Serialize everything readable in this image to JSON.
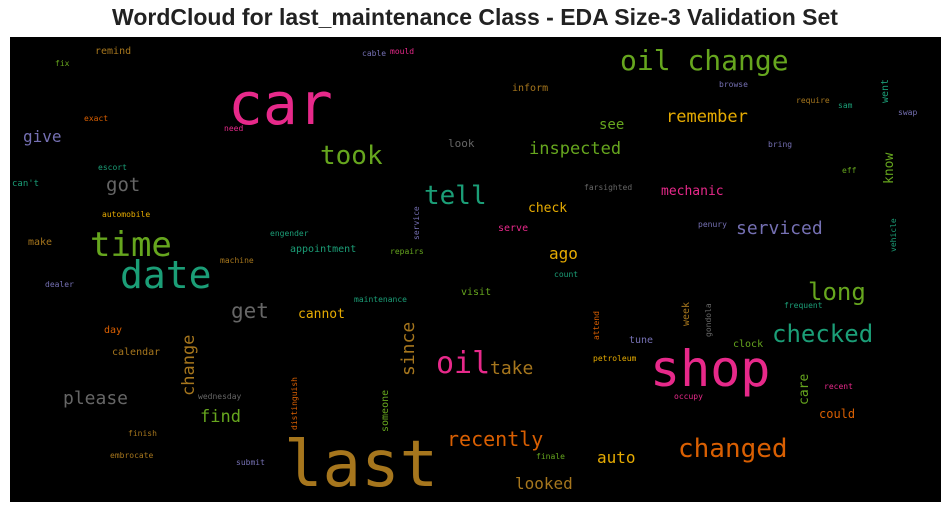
{
  "chart_data": {
    "type": "wordcloud",
    "title": "WordCloud for last_maintenance Class - EDA Size-3 Validation Set",
    "background": "#000000",
    "palette": "Dark2",
    "words": [
      {
        "text": "last",
        "weight": 1.0,
        "color": "#a6761d",
        "rotate": false
      },
      {
        "text": "car",
        "weight": 0.92,
        "color": "#e7298a",
        "rotate": false
      },
      {
        "text": "shop",
        "weight": 0.8,
        "color": "#e7298a",
        "rotate": false
      },
      {
        "text": "date",
        "weight": 0.62,
        "color": "#1b9e77",
        "rotate": false
      },
      {
        "text": "time",
        "weight": 0.56,
        "color": "#66a61e",
        "rotate": false
      },
      {
        "text": "oil change",
        "weight": 0.45,
        "color": "#66a61e",
        "rotate": false
      },
      {
        "text": "oil",
        "weight": 0.5,
        "color": "#e7298a",
        "rotate": false
      },
      {
        "text": "took",
        "weight": 0.44,
        "color": "#66a61e",
        "rotate": false
      },
      {
        "text": "tell",
        "weight": 0.44,
        "color": "#1b9e77",
        "rotate": false
      },
      {
        "text": "changed",
        "weight": 0.43,
        "color": "#d95f02",
        "rotate": false
      },
      {
        "text": "checked",
        "weight": 0.42,
        "color": "#1b9e77",
        "rotate": false
      },
      {
        "text": "long",
        "weight": 0.38,
        "color": "#66a61e",
        "rotate": false
      },
      {
        "text": "recently",
        "weight": 0.33,
        "color": "#d95f02",
        "rotate": false
      },
      {
        "text": "get",
        "weight": 0.33,
        "color": "#666666",
        "rotate": false
      },
      {
        "text": "got",
        "weight": 0.32,
        "color": "#666666",
        "rotate": false
      },
      {
        "text": "please",
        "weight": 0.3,
        "color": "#666666",
        "rotate": false
      },
      {
        "text": "take",
        "weight": 0.3,
        "color": "#a6761d",
        "rotate": false
      },
      {
        "text": "serviced",
        "weight": 0.29,
        "color": "#7570b3",
        "rotate": false
      },
      {
        "text": "remember",
        "weight": 0.28,
        "color": "#e6ab02",
        "rotate": false
      },
      {
        "text": "inspected",
        "weight": 0.28,
        "color": "#66a61e",
        "rotate": false
      },
      {
        "text": "change",
        "weight": 0.28,
        "color": "#a6761d",
        "rotate": true
      },
      {
        "text": "since",
        "weight": 0.28,
        "color": "#a6761d",
        "rotate": true
      },
      {
        "text": "find",
        "weight": 0.27,
        "color": "#66a61e",
        "rotate": false
      },
      {
        "text": "auto",
        "weight": 0.26,
        "color": "#e6ab02",
        "rotate": false
      },
      {
        "text": "looked",
        "weight": 0.26,
        "color": "#a6761d",
        "rotate": false
      },
      {
        "text": "ago",
        "weight": 0.26,
        "color": "#e6ab02",
        "rotate": false
      },
      {
        "text": "give",
        "weight": 0.25,
        "color": "#7570b3",
        "rotate": false
      },
      {
        "text": "see",
        "weight": 0.22,
        "color": "#66a61e",
        "rotate": false
      },
      {
        "text": "mechanic",
        "weight": 0.22,
        "color": "#e7298a",
        "rotate": false
      },
      {
        "text": "check",
        "weight": 0.2,
        "color": "#e6ab02",
        "rotate": false
      },
      {
        "text": "cannot",
        "weight": 0.2,
        "color": "#e6ab02",
        "rotate": false
      },
      {
        "text": "know",
        "weight": 0.2,
        "color": "#66a61e",
        "rotate": true
      },
      {
        "text": "care",
        "weight": 0.2,
        "color": "#66a61e",
        "rotate": true
      },
      {
        "text": "could",
        "weight": 0.19,
        "color": "#d95f02",
        "rotate": false
      },
      {
        "text": "remind",
        "weight": 0.17,
        "color": "#a6761d",
        "rotate": false
      },
      {
        "text": "inform",
        "weight": 0.17,
        "color": "#a6761d",
        "rotate": false
      },
      {
        "text": "look",
        "weight": 0.17,
        "color": "#666666",
        "rotate": false
      },
      {
        "text": "serve",
        "weight": 0.16,
        "color": "#e7298a",
        "rotate": false
      },
      {
        "text": "appointment",
        "weight": 0.16,
        "color": "#1b9e77",
        "rotate": false
      },
      {
        "text": "visit",
        "weight": 0.16,
        "color": "#66a61e",
        "rotate": false
      },
      {
        "text": "tune",
        "weight": 0.16,
        "color": "#7570b3",
        "rotate": false
      },
      {
        "text": "clock",
        "weight": 0.16,
        "color": "#66a61e",
        "rotate": false
      },
      {
        "text": "calendar",
        "weight": 0.16,
        "color": "#a6761d",
        "rotate": false
      },
      {
        "text": "make",
        "weight": 0.16,
        "color": "#a6761d",
        "rotate": false
      },
      {
        "text": "day",
        "weight": 0.16,
        "color": "#d95f02",
        "rotate": false
      },
      {
        "text": "can't",
        "weight": 0.15,
        "color": "#1b9e77",
        "rotate": false
      },
      {
        "text": "week",
        "weight": 0.15,
        "color": "#a6761d",
        "rotate": true
      },
      {
        "text": "went",
        "weight": 0.15,
        "color": "#1b9e77",
        "rotate": true
      },
      {
        "text": "someone",
        "weight": 0.14,
        "color": "#66a61e",
        "rotate": true
      },
      {
        "text": "wednesday",
        "weight": 0.13,
        "color": "#666666",
        "rotate": false
      },
      {
        "text": "farsighted",
        "weight": 0.13,
        "color": "#666666",
        "rotate": false
      },
      {
        "text": "finish",
        "weight": 0.13,
        "color": "#a6761d",
        "rotate": false
      },
      {
        "text": "embrocate",
        "weight": 0.13,
        "color": "#a6761d",
        "rotate": false
      },
      {
        "text": "submit",
        "weight": 0.13,
        "color": "#7570b3",
        "rotate": false
      },
      {
        "text": "finale",
        "weight": 0.13,
        "color": "#66a61e",
        "rotate": false
      },
      {
        "text": "occupy",
        "weight": 0.13,
        "color": "#e7298a",
        "rotate": false
      },
      {
        "text": "petroleum",
        "weight": 0.13,
        "color": "#e6ab02",
        "rotate": false
      },
      {
        "text": "recent",
        "weight": 0.13,
        "color": "#e7298a",
        "rotate": false
      },
      {
        "text": "frequent",
        "weight": 0.13,
        "color": "#1b9e77",
        "rotate": false
      },
      {
        "text": "penury",
        "weight": 0.13,
        "color": "#7570b3",
        "rotate": false
      },
      {
        "text": "eff",
        "weight": 0.13,
        "color": "#66a61e",
        "rotate": false
      },
      {
        "text": "bring",
        "weight": 0.13,
        "color": "#7570b3",
        "rotate": false
      },
      {
        "text": "browse",
        "weight": 0.13,
        "color": "#7570b3",
        "rotate": false
      },
      {
        "text": "require",
        "weight": 0.13,
        "color": "#a6761d",
        "rotate": false
      },
      {
        "text": "sam",
        "weight": 0.13,
        "color": "#1b9e77",
        "rotate": false
      },
      {
        "text": "swap",
        "weight": 0.13,
        "color": "#7570b3",
        "rotate": false
      },
      {
        "text": "exact",
        "weight": 0.13,
        "color": "#d95f02",
        "rotate": false
      },
      {
        "text": "need",
        "weight": 0.13,
        "color": "#e7298a",
        "rotate": false
      },
      {
        "text": "escort",
        "weight": 0.13,
        "color": "#1b9e77",
        "rotate": false
      },
      {
        "text": "automobile",
        "weight": 0.13,
        "color": "#e6ab02",
        "rotate": false
      },
      {
        "text": "engender",
        "weight": 0.13,
        "color": "#1b9e77",
        "rotate": false
      },
      {
        "text": "machine",
        "weight": 0.13,
        "color": "#a6761d",
        "rotate": false
      },
      {
        "text": "dealer",
        "weight": 0.13,
        "color": "#7570b3",
        "rotate": false
      },
      {
        "text": "maintenance",
        "weight": 0.13,
        "color": "#1b9e77",
        "rotate": false
      },
      {
        "text": "repairs",
        "weight": 0.13,
        "color": "#66a61e",
        "rotate": false
      },
      {
        "text": "count",
        "weight": 0.13,
        "color": "#1b9e77",
        "rotate": false
      },
      {
        "text": "fix",
        "weight": 0.13,
        "color": "#66a61e",
        "rotate": false
      },
      {
        "text": "cable",
        "weight": 0.13,
        "color": "#7570b3",
        "rotate": false
      },
      {
        "text": "mould",
        "weight": 0.13,
        "color": "#e7298a",
        "rotate": false
      },
      {
        "text": "service",
        "weight": 0.13,
        "color": "#7570b3",
        "rotate": true
      },
      {
        "text": "distinguish",
        "weight": 0.13,
        "color": "#d95f02",
        "rotate": true
      },
      {
        "text": "attend",
        "weight": 0.13,
        "color": "#d95f02",
        "rotate": true
      },
      {
        "text": "gondola",
        "weight": 0.13,
        "color": "#666666",
        "rotate": true
      },
      {
        "text": "vehicle",
        "weight": 0.13,
        "color": "#1b9e77",
        "rotate": true
      }
    ]
  }
}
